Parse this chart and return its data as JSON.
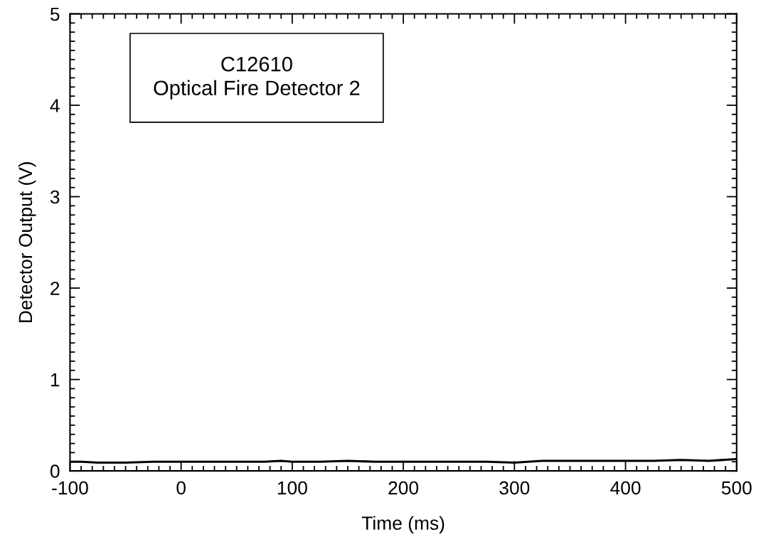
{
  "chart_data": {
    "type": "line",
    "xlabel": "Time (ms)",
    "ylabel": "Detector Output (V)",
    "annotations": [
      "C12610\nOptical Fire Detector 2"
    ],
    "x": [
      -100,
      -90,
      -75,
      -50,
      -25,
      0,
      25,
      50,
      75,
      90,
      100,
      125,
      150,
      175,
      200,
      225,
      250,
      275,
      300,
      325,
      350,
      375,
      400,
      425,
      450,
      475,
      500
    ],
    "series": [
      {
        "color": "#000000",
        "values": [
          0.1,
          0.1,
          0.09,
          0.09,
          0.1,
          0.1,
          0.1,
          0.1,
          0.1,
          0.11,
          0.1,
          0.1,
          0.11,
          0.1,
          0.1,
          0.1,
          0.1,
          0.1,
          0.09,
          0.11,
          0.11,
          0.11,
          0.11,
          0.11,
          0.12,
          0.11,
          0.13
        ]
      }
    ],
    "xlim": [
      -100,
      500
    ],
    "xticks": [
      -100,
      0,
      100,
      200,
      300,
      400,
      500
    ],
    "ylim": [
      0,
      5
    ],
    "yticks": [
      0,
      1,
      2,
      3,
      4,
      5
    ],
    "grid": false,
    "legend": false,
    "marker": "none",
    "line_style": "solid"
  }
}
